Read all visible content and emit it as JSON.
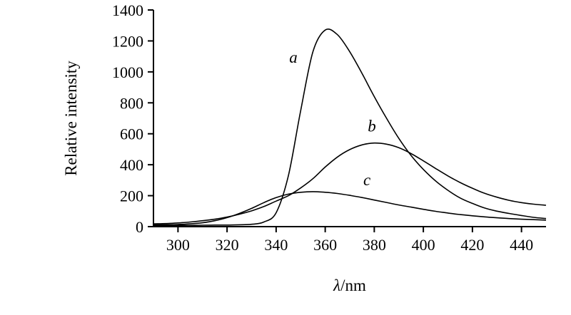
{
  "chart_data": {
    "type": "line",
    "title": "",
    "xlabel": "λ/nm",
    "xlabel_symbol": "λ",
    "xlabel_unit": "/nm",
    "ylabel": "Relative intensity",
    "xlim": [
      290,
      450
    ],
    "ylim": [
      0,
      1400
    ],
    "xticks": [
      300,
      320,
      340,
      360,
      380,
      400,
      420,
      440
    ],
    "yticks": [
      0,
      200,
      400,
      600,
      800,
      1000,
      1200,
      1400
    ],
    "grid": false,
    "legend": "inline-annotations",
    "line_color": "#000000",
    "x": [
      290,
      295,
      300,
      305,
      310,
      315,
      320,
      325,
      330,
      335,
      340,
      345,
      350,
      355,
      360,
      365,
      370,
      375,
      380,
      385,
      390,
      395,
      400,
      405,
      410,
      415,
      420,
      425,
      430,
      435,
      440,
      445,
      450
    ],
    "series": [
      {
        "name": "a",
        "peak_x": 360,
        "peak_y": 1270,
        "values": [
          8,
          8,
          8,
          8,
          9,
          10,
          10,
          12,
          15,
          30,
          90,
          330,
          750,
          1130,
          1270,
          1240,
          1130,
          990,
          840,
          700,
          570,
          460,
          370,
          295,
          235,
          185,
          150,
          120,
          100,
          85,
          72,
          60,
          52
        ]
      },
      {
        "name": "b",
        "peak_x": 380,
        "peak_y": 540,
        "values": [
          18,
          20,
          24,
          30,
          38,
          48,
          62,
          80,
          102,
          130,
          165,
          200,
          250,
          310,
          385,
          450,
          498,
          528,
          540,
          533,
          510,
          472,
          425,
          376,
          328,
          285,
          248,
          215,
          190,
          170,
          155,
          145,
          138
        ]
      },
      {
        "name": "c",
        "peak_x": 355,
        "peak_y": 226,
        "values": [
          12,
          12,
          14,
          18,
          25,
          38,
          58,
          85,
          118,
          155,
          188,
          210,
          222,
          226,
          222,
          214,
          202,
          188,
          172,
          156,
          140,
          126,
          112,
          99,
          88,
          78,
          70,
          63,
          57,
          52,
          48,
          45,
          42
        ]
      }
    ],
    "annotations": [
      {
        "text": "a",
        "x": 347,
        "y": 1060
      },
      {
        "text": "b",
        "x": 379,
        "y": 615
      },
      {
        "text": "c",
        "x": 377,
        "y": 268
      }
    ]
  }
}
